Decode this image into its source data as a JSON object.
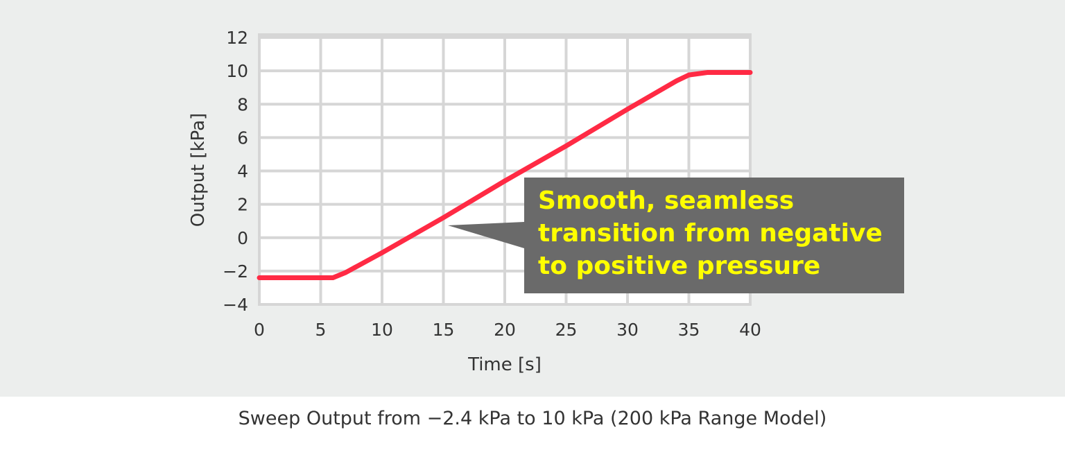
{
  "chart_data": {
    "type": "line",
    "xlabel": "Time [s]",
    "ylabel": "Output [kPa]",
    "xlim": [
      0,
      40
    ],
    "ylim": [
      -4,
      12
    ],
    "x_ticks": [
      "0",
      "5",
      "10",
      "15",
      "20",
      "25",
      "30",
      "35",
      "40"
    ],
    "y_ticks": [
      "12",
      "10",
      "8",
      "6",
      "4",
      "2",
      "0",
      "−2",
      "−4"
    ],
    "grid": true,
    "series": [
      {
        "color": "#ff2a44",
        "x": [
          0,
          6,
          7,
          8,
          10,
          15,
          20,
          25,
          30,
          34,
          35,
          36.5,
          40
        ],
        "y": [
          -2.4,
          -2.4,
          -2.1,
          -1.7,
          -0.9,
          1.2,
          3.4,
          5.5,
          7.7,
          9.4,
          9.75,
          9.9,
          9.9
        ]
      }
    ],
    "annotation": {
      "lines": [
        "Smooth, seamless",
        "transition from negative",
        "to positive pressure"
      ],
      "text_color": "#ffff00",
      "box_color": "#6a6a6a"
    }
  },
  "caption": "Sweep Output from −2.4 kPa to 10 kPa (200 kPa Range Model)"
}
